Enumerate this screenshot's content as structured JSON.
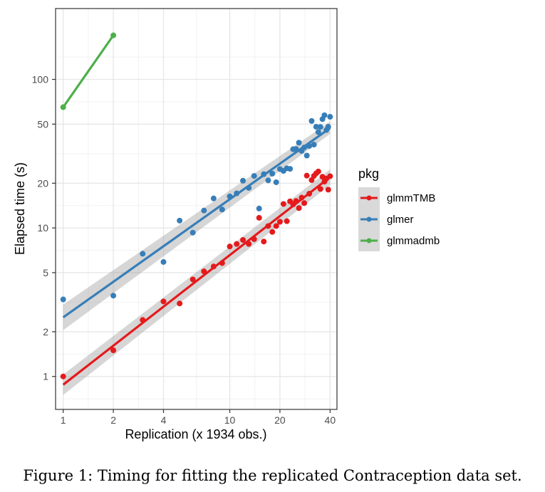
{
  "caption": "Figure 1: Timing for fitting the replicated Contraception data set.",
  "chart_data": {
    "type": "scatter",
    "xlabel": "Replication (x 1934 obs.)",
    "ylabel": "Elapsed time (s)",
    "x_scale": "log",
    "y_scale": "log",
    "xlim": [
      0.9,
      44
    ],
    "ylim": [
      0.6,
      300
    ],
    "x_ticks": [
      1,
      2,
      4,
      10,
      20,
      40
    ],
    "x_tick_labels": [
      "1",
      "2",
      "4",
      "10",
      "20",
      "40"
    ],
    "y_ticks": [
      1,
      2,
      5,
      10,
      20,
      50,
      100
    ],
    "y_tick_labels": [
      "1",
      "2",
      "5",
      "10",
      "20",
      "50",
      "100"
    ],
    "grid": true,
    "legend": {
      "title": "pkg",
      "position": "right"
    },
    "series": [
      {
        "name": "glmmTMB",
        "color": "#E41A1C",
        "points": [
          [
            1,
            1.0
          ],
          [
            2,
            1.5
          ],
          [
            3,
            2.4
          ],
          [
            4,
            3.2
          ],
          [
            5,
            3.1
          ],
          [
            6,
            4.5
          ],
          [
            7,
            5.1
          ],
          [
            8,
            5.5
          ],
          [
            9,
            5.8
          ],
          [
            10,
            7.5
          ],
          [
            11,
            7.8
          ],
          [
            12,
            8.3
          ],
          [
            13,
            7.8
          ],
          [
            14,
            8.4
          ],
          [
            15,
            11.7
          ],
          [
            16,
            8.1
          ],
          [
            17,
            10.3
          ],
          [
            18,
            9.4
          ],
          [
            19,
            10.3
          ],
          [
            20,
            11.0
          ],
          [
            21,
            14.5
          ],
          [
            22,
            11.1
          ],
          [
            23,
            15.1
          ],
          [
            24,
            14.4
          ],
          [
            25,
            15.2
          ],
          [
            26,
            13.6
          ],
          [
            27,
            16.0
          ],
          [
            28,
            14.7
          ],
          [
            29,
            22.5
          ],
          [
            30,
            17.0
          ],
          [
            31,
            21.0
          ],
          [
            32,
            22.4
          ],
          [
            33,
            23.3
          ],
          [
            34,
            24.0
          ],
          [
            35,
            18.3
          ],
          [
            36,
            22.1
          ],
          [
            37,
            20.5
          ],
          [
            38,
            21.5
          ],
          [
            39,
            18.1
          ],
          [
            40,
            22.3
          ]
        ],
        "fit": {
          "x": [
            1,
            40
          ],
          "y": [
            0.88,
            22.0
          ],
          "ci_low": [
            0.75,
            19.5
          ],
          "ci_high": [
            1.03,
            24.8
          ]
        }
      },
      {
        "name": "glmer",
        "color": "#377EB8",
        "points": [
          [
            1,
            3.3
          ],
          [
            2,
            3.5
          ],
          [
            3,
            6.7
          ],
          [
            4,
            5.9
          ],
          [
            5,
            11.2
          ],
          [
            6,
            9.3
          ],
          [
            7,
            13.1
          ],
          [
            8,
            15.8
          ],
          [
            9,
            13.3
          ],
          [
            10,
            16.3
          ],
          [
            11,
            17.1
          ],
          [
            12,
            20.8
          ],
          [
            13,
            18.6
          ],
          [
            14,
            22.4
          ],
          [
            15,
            13.5
          ],
          [
            16,
            23.0
          ],
          [
            17,
            20.9
          ],
          [
            18,
            23.2
          ],
          [
            19,
            20.3
          ],
          [
            20,
            24.9
          ],
          [
            21,
            24.2
          ],
          [
            22,
            25.2
          ],
          [
            23,
            25.0
          ],
          [
            24,
            33.9
          ],
          [
            25,
            34.0
          ],
          [
            26,
            37.5
          ],
          [
            27,
            33.0
          ],
          [
            28,
            34.8
          ],
          [
            29,
            30.7
          ],
          [
            30,
            35.6
          ],
          [
            31,
            52.5
          ],
          [
            32,
            36.4
          ],
          [
            33,
            48.0
          ],
          [
            34,
            44.2
          ],
          [
            35,
            47.9
          ],
          [
            36,
            54.0
          ],
          [
            37,
            57.4
          ],
          [
            38,
            45.6
          ],
          [
            39,
            48.0
          ],
          [
            40,
            56.0
          ]
        ],
        "fit": {
          "x": [
            1,
            40
          ],
          "y": [
            2.5,
            47.0
          ],
          "ci_low": [
            2.05,
            43.0
          ],
          "ci_high": [
            3.05,
            52.0
          ]
        }
      },
      {
        "name": "glmmadmb",
        "color": "#4DAF4A",
        "points": [
          [
            1,
            65
          ],
          [
            2,
            198
          ]
        ],
        "fit": null
      }
    ]
  }
}
